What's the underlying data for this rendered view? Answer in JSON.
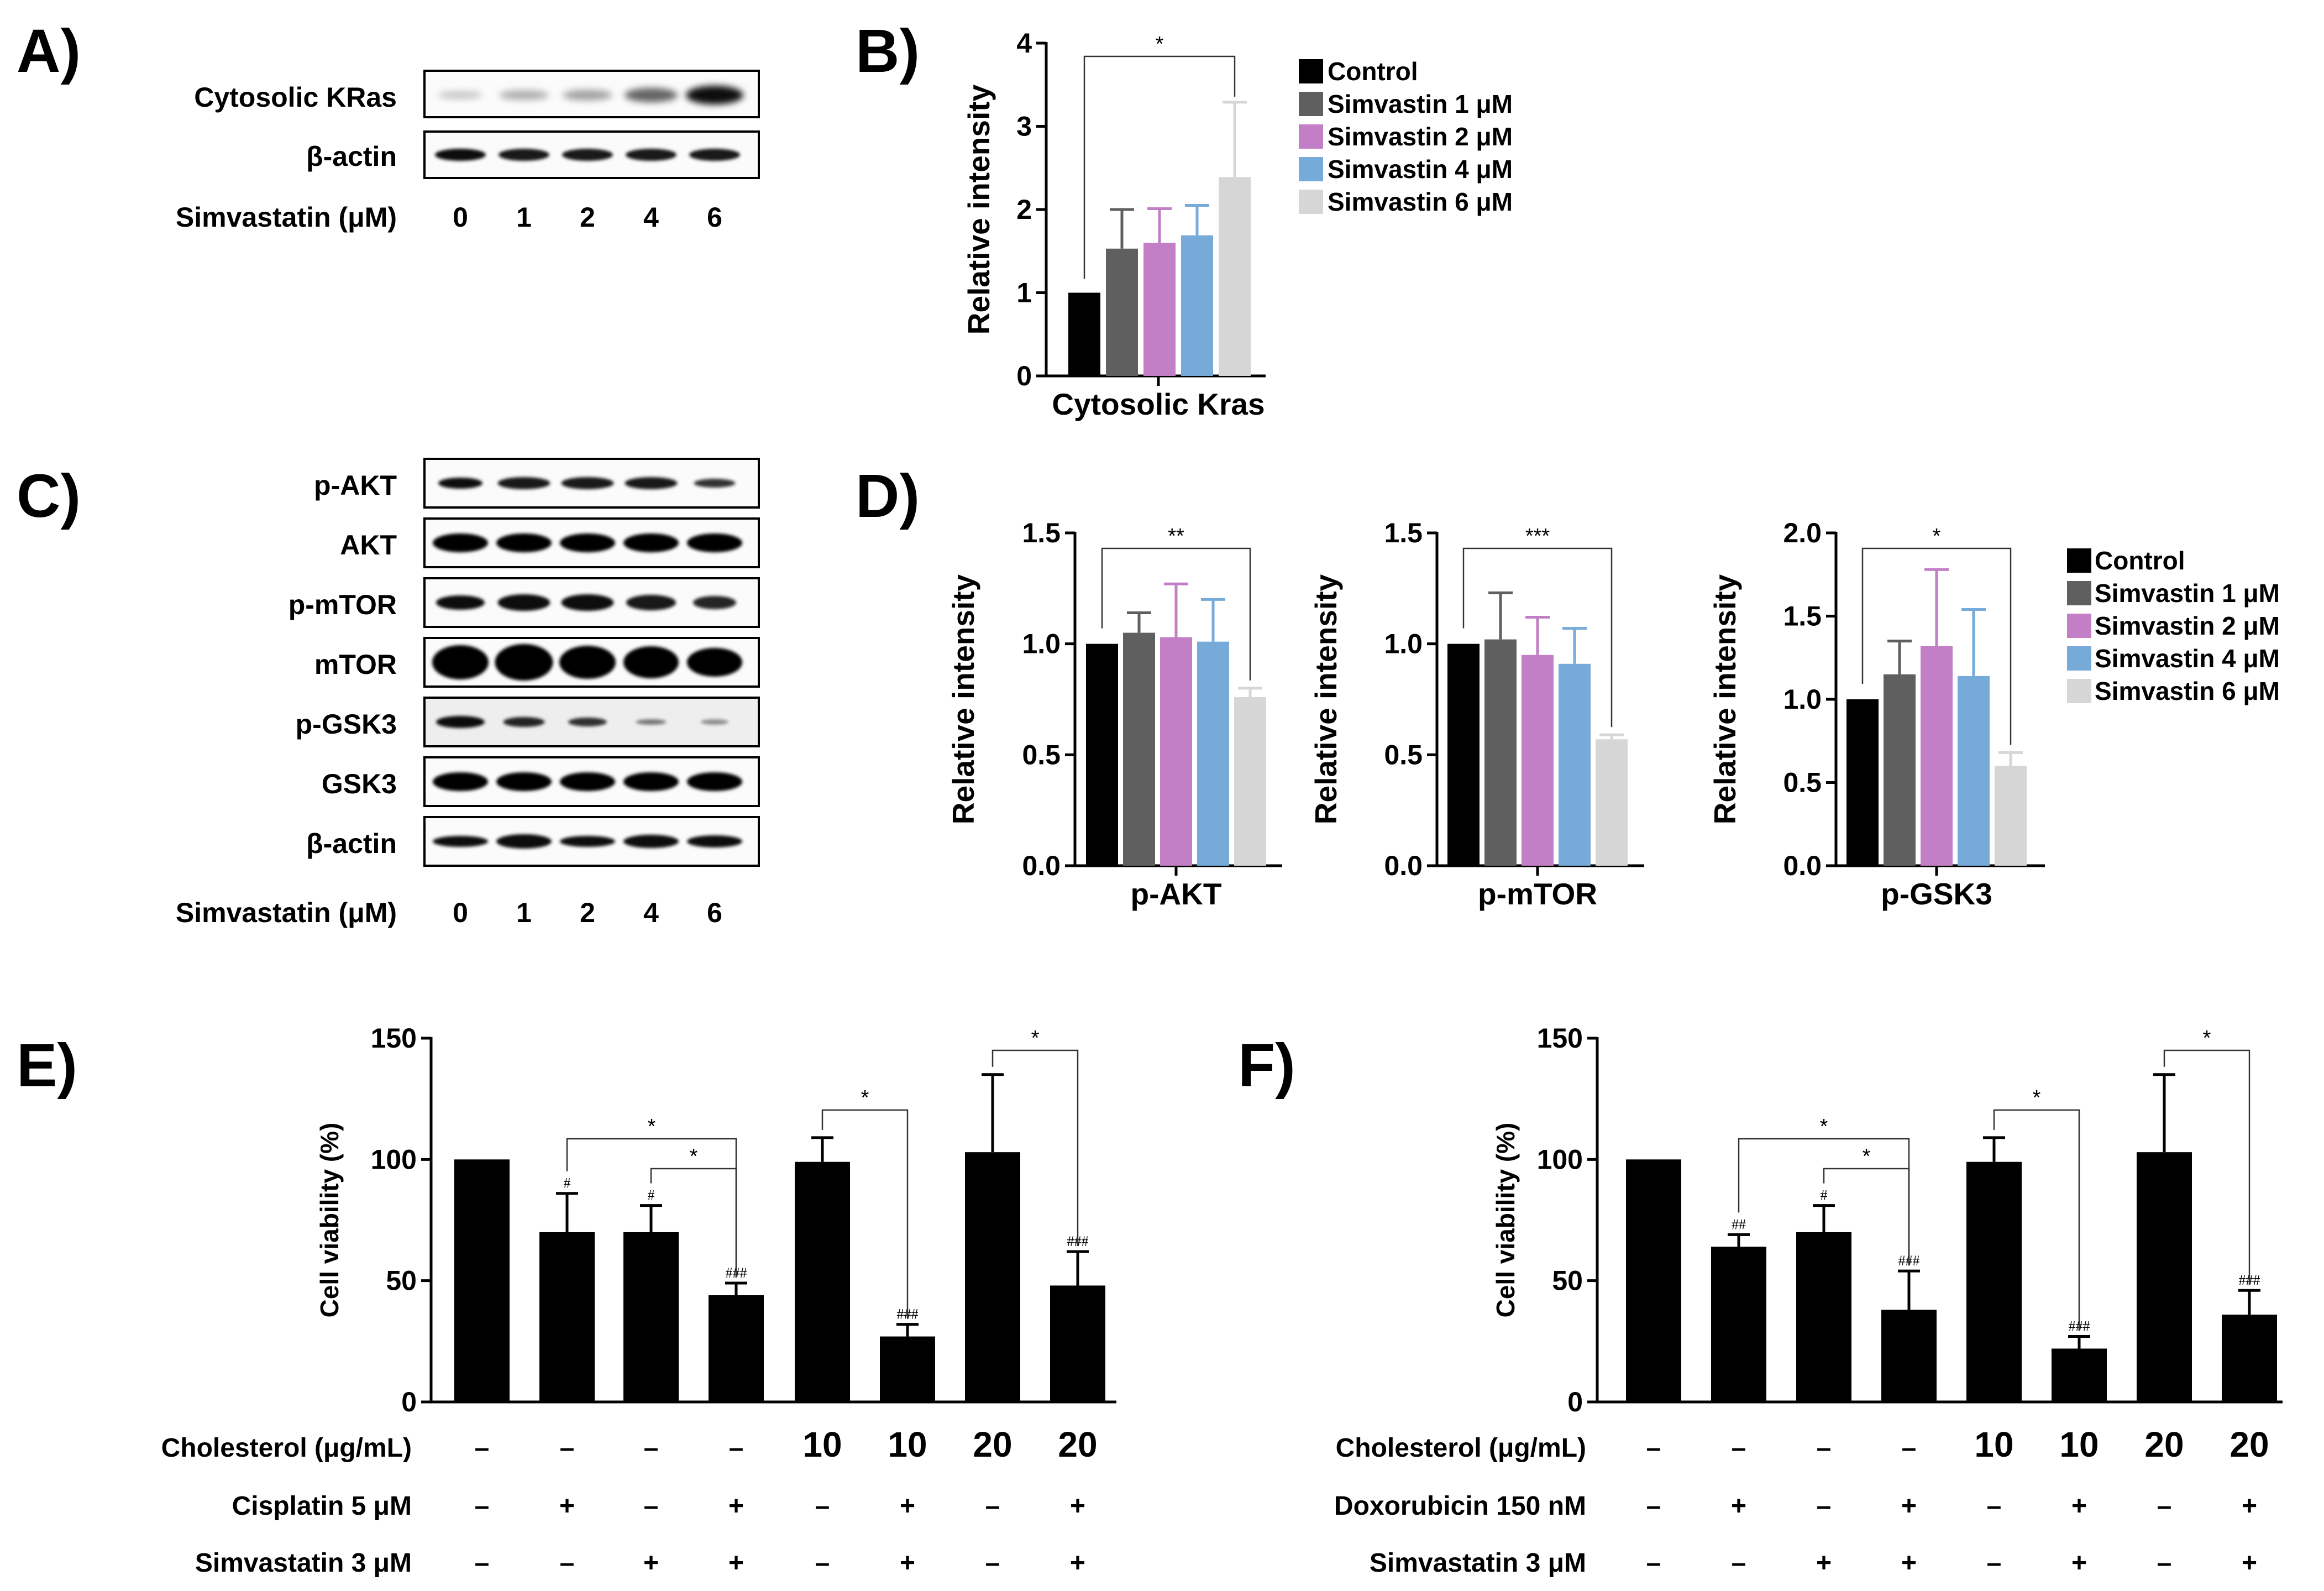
{
  "panel_labels": [
    "A)",
    "B)",
    "C)",
    "D)",
    "E)",
    "F)"
  ],
  "panel_A": {
    "band_labels": [
      "Cytosolic KRas",
      "β-actin"
    ],
    "dose_label": "Simvastatin (μM)",
    "doses": [
      "0",
      "1",
      "2",
      "4",
      "6"
    ]
  },
  "panel_C": {
    "band_labels": [
      "p-AKT",
      "AKT",
      "p-mTOR",
      "mTOR",
      "p-GSK3",
      "GSK3",
      "β-actin"
    ],
    "dose_label": "Simvastatin (μM)",
    "doses": [
      "0",
      "1",
      "2",
      "4",
      "6"
    ]
  },
  "legend": {
    "entries": [
      "Control",
      "Simvastin 1 μM",
      "Simvastin 2 μM",
      "Simvastin 4 μM",
      "Simvastin 6 μM"
    ],
    "colors": [
      "#000000",
      "#5f5f5f",
      "#c27fc6",
      "#76aad8",
      "#d6d6d6"
    ]
  },
  "chart_data": [
    {
      "id": "B",
      "type": "bar",
      "title": "",
      "xlabel": "Cytosolic Kras",
      "ylabel": "Relative intensity",
      "categories": [
        "Control",
        "Simvastin 1 μM",
        "Simvastin 2 μM",
        "Simvastin 4 μM",
        "Simvastin 6 μM"
      ],
      "values": [
        1.0,
        1.53,
        1.6,
        1.69,
        2.39
      ],
      "errors": [
        0,
        0.47,
        0.41,
        0.36,
        0.9
      ],
      "ylim": [
        0,
        4
      ],
      "yticks": [
        "0",
        "1",
        "2",
        "3",
        "4"
      ],
      "significance": [
        {
          "from": 0,
          "to": 4,
          "label": "*"
        }
      ]
    },
    {
      "id": "D1",
      "type": "bar",
      "xlabel": "p-AKT",
      "ylabel": "Relative intensity",
      "categories": [
        "Control",
        "Simvastin 1 μM",
        "Simvastin 2 μM",
        "Simvastin 4 μM",
        "Simvastin 6 μM"
      ],
      "values": [
        1.0,
        1.05,
        1.03,
        1.01,
        0.76
      ],
      "errors": [
        0,
        0.09,
        0.24,
        0.19,
        0.04
      ],
      "ylim": [
        0,
        1.5
      ],
      "yticks": [
        "0.0",
        "0.5",
        "1.0",
        "1.5"
      ],
      "significance": [
        {
          "from": 0,
          "to": 4,
          "label": "**"
        }
      ]
    },
    {
      "id": "D2",
      "type": "bar",
      "xlabel": "p-mTOR",
      "ylabel": "Relative intensity",
      "categories": [
        "Control",
        "Simvastin 1 μM",
        "Simvastin 2 μM",
        "Simvastin 4 μM",
        "Simvastin 6 μM"
      ],
      "values": [
        1.0,
        1.02,
        0.95,
        0.91,
        0.57
      ],
      "errors": [
        0,
        0.21,
        0.17,
        0.16,
        0.02
      ],
      "ylim": [
        0,
        1.5
      ],
      "yticks": [
        "0.0",
        "0.5",
        "1.0",
        "1.5"
      ],
      "significance": [
        {
          "from": 0,
          "to": 4,
          "label": "***"
        }
      ]
    },
    {
      "id": "D3",
      "type": "bar",
      "xlabel": "p-GSK3",
      "ylabel": "Relative intensity",
      "categories": [
        "Control",
        "Simvastin 1 μM",
        "Simvastin 2 μM",
        "Simvastin 4 μM",
        "Simvastin 6 μM"
      ],
      "values": [
        1.0,
        1.15,
        1.32,
        1.14,
        0.6
      ],
      "errors": [
        0,
        0.2,
        0.46,
        0.4,
        0.08
      ],
      "ylim": [
        0,
        2.0
      ],
      "yticks": [
        "0.0",
        "0.5",
        "1.0",
        "1.5",
        "2.0"
      ],
      "significance": [
        {
          "from": 0,
          "to": 4,
          "label": "*"
        }
      ]
    },
    {
      "id": "E",
      "type": "bar",
      "xlabel": "",
      "ylabel": "Cell viability (%)",
      "values": [
        100,
        70,
        70,
        44,
        99,
        27,
        103,
        48
      ],
      "errors": [
        0,
        16,
        11,
        5,
        10,
        5,
        32,
        14
      ],
      "hash_marks": [
        "",
        "#",
        "#",
        "###",
        "",
        "###",
        "",
        "###"
      ],
      "ylim": [
        0,
        150
      ],
      "yticks": [
        "0",
        "50",
        "100",
        "150"
      ],
      "significance": [
        {
          "from": 1,
          "to": 3,
          "label": "*"
        },
        {
          "from": 2,
          "to": 3,
          "label": "*"
        },
        {
          "from": 4,
          "to": 5,
          "label": "*"
        },
        {
          "from": 6,
          "to": 7,
          "label": "*"
        }
      ],
      "rows": [
        {
          "label": "Cholesterol (μg/mL)",
          "cells": [
            "–",
            "–",
            "–",
            "–",
            "10",
            "10",
            "20",
            "20"
          ]
        },
        {
          "label": "Cisplatin 5 μM",
          "cells": [
            "–",
            "+",
            "–",
            "+",
            "–",
            "+",
            "–",
            "+"
          ]
        },
        {
          "label": "Simvastatin 3 μM",
          "cells": [
            "–",
            "–",
            "+",
            "+",
            "–",
            "+",
            "–",
            "+"
          ]
        }
      ]
    },
    {
      "id": "F",
      "type": "bar",
      "xlabel": "",
      "ylabel": "Cell viability (%)",
      "values": [
        100,
        64,
        70,
        38,
        99,
        22,
        103,
        36
      ],
      "errors": [
        0,
        5,
        11,
        16,
        10,
        5,
        32,
        10
      ],
      "hash_marks": [
        "",
        "##",
        "#",
        "###",
        "",
        "###",
        "",
        "###"
      ],
      "ylim": [
        0,
        150
      ],
      "yticks": [
        "0",
        "50",
        "100",
        "150"
      ],
      "significance": [
        {
          "from": 1,
          "to": 3,
          "label": "*"
        },
        {
          "from": 2,
          "to": 3,
          "label": "*"
        },
        {
          "from": 4,
          "to": 5,
          "label": "*"
        },
        {
          "from": 6,
          "to": 7,
          "label": "*"
        }
      ],
      "rows": [
        {
          "label": "Cholesterol (μg/mL)",
          "cells": [
            "–",
            "–",
            "–",
            "–",
            "10",
            "10",
            "20",
            "20"
          ]
        },
        {
          "label": "Doxorubicin 150 nM",
          "cells": [
            "–",
            "+",
            "–",
            "+",
            "–",
            "+",
            "–",
            "+"
          ]
        },
        {
          "label": "Simvastatin 3 μM",
          "cells": [
            "–",
            "–",
            "+",
            "+",
            "–",
            "+",
            "–",
            "+"
          ]
        }
      ]
    }
  ]
}
